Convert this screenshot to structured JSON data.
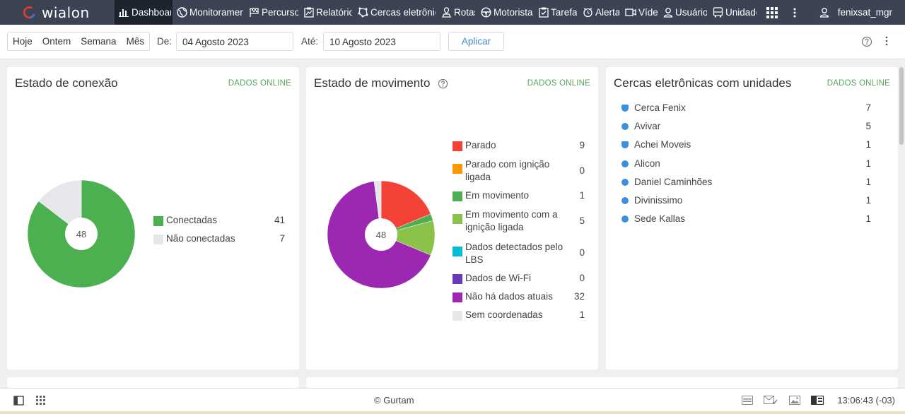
{
  "app": {
    "logo_text": "wialon",
    "user": "fenixsat_mgr"
  },
  "nav": [
    {
      "label": "Dashboard",
      "icon": "bar-chart-icon"
    },
    {
      "label": "Monitoramento",
      "icon": "globe-icon"
    },
    {
      "label": "Percurso",
      "icon": "flag-icon"
    },
    {
      "label": "Relatórios",
      "icon": "report-icon"
    },
    {
      "label": "Cercas eletrônicas",
      "icon": "geofence-icon"
    },
    {
      "label": "Rotas",
      "icon": "route-icon"
    },
    {
      "label": "Motoristas",
      "icon": "steering-wheel-icon"
    },
    {
      "label": "Tarefas",
      "icon": "task-icon"
    },
    {
      "label": "Alertas",
      "icon": "alarm-icon"
    },
    {
      "label": "Vídeo",
      "icon": "video-icon"
    },
    {
      "label": "Usuários",
      "icon": "user-icon"
    },
    {
      "label": "Unidades",
      "icon": "bus-icon"
    }
  ],
  "filters": {
    "periods": [
      "Hoje",
      "Ontem",
      "Semana",
      "Mês"
    ],
    "from_label": "De:",
    "from_value": "04 Agosto 2023",
    "to_label": "Até:",
    "to_value": "10 Agosto 2023",
    "apply_label": "Aplicar"
  },
  "online_label": "DADOS ONLINE",
  "connection": {
    "title": "Estado de conexão",
    "total": "48",
    "items": [
      {
        "label": "Conectadas",
        "count": "41",
        "color": "#4caf50"
      },
      {
        "label": "Não conectadas",
        "count": "7",
        "color": "#e5e7eb"
      }
    ]
  },
  "movement": {
    "title": "Estado de movimento",
    "total": "48",
    "items": [
      {
        "label": "Parado",
        "count": "9",
        "color": "#f44336"
      },
      {
        "label": "Parado com ignição ligada",
        "count": "0",
        "color": "#ff9800"
      },
      {
        "label": "Em movimento",
        "count": "1",
        "color": "#4caf50"
      },
      {
        "label": "Em movimento com a ignição ligada",
        "count": "5",
        "color": "#8bc34a"
      },
      {
        "label": "Dados detectados pelo LBS",
        "count": "0",
        "color": "#00bcd4"
      },
      {
        "label": "Dados de Wi-Fi",
        "count": "0",
        "color": "#673ab7"
      },
      {
        "label": "Não há dados atuais",
        "count": "32",
        "color": "#9c27b0"
      },
      {
        "label": "Sem coordenadas",
        "count": "1",
        "color": "#e5e7eb"
      }
    ]
  },
  "geofences": {
    "title": "Cercas eletrônicas com unidades",
    "items": [
      {
        "label": "Cerca Fenix",
        "count": "7",
        "shape": "polygon"
      },
      {
        "label": "Avivar",
        "count": "5",
        "shape": "circle"
      },
      {
        "label": "Achei Moveis",
        "count": "1",
        "shape": "polygon"
      },
      {
        "label": "Alicon",
        "count": "1",
        "shape": "circle"
      },
      {
        "label": "Daniel Caminhões",
        "count": "1",
        "shape": "circle"
      },
      {
        "label": "Divinissimo",
        "count": "1",
        "shape": "circle"
      },
      {
        "label": "Sede Kallas",
        "count": "1",
        "shape": "circle"
      }
    ]
  },
  "footer": {
    "copyright": "© Gurtam",
    "time": "13:06:43 (-03)"
  },
  "chart_data": [
    {
      "type": "pie",
      "title": "Estado de conexão",
      "categories": [
        "Conectadas",
        "Não conectadas"
      ],
      "values": [
        41,
        7
      ],
      "colors": [
        "#4caf50",
        "#e5e7eb"
      ],
      "legend": "right"
    },
    {
      "type": "pie",
      "title": "Estado de movimento",
      "categories": [
        "Parado",
        "Parado com ignição ligada",
        "Em movimento",
        "Em movimento com a ignição ligada",
        "Dados detectados pelo LBS",
        "Dados de Wi-Fi",
        "Não há dados atuais",
        "Sem coordenadas"
      ],
      "values": [
        9,
        0,
        1,
        5,
        0,
        0,
        32,
        1
      ],
      "colors": [
        "#f44336",
        "#ff9800",
        "#4caf50",
        "#8bc34a",
        "#00bcd4",
        "#673ab7",
        "#9c27b0",
        "#e5e7eb"
      ],
      "legend": "right"
    }
  ]
}
